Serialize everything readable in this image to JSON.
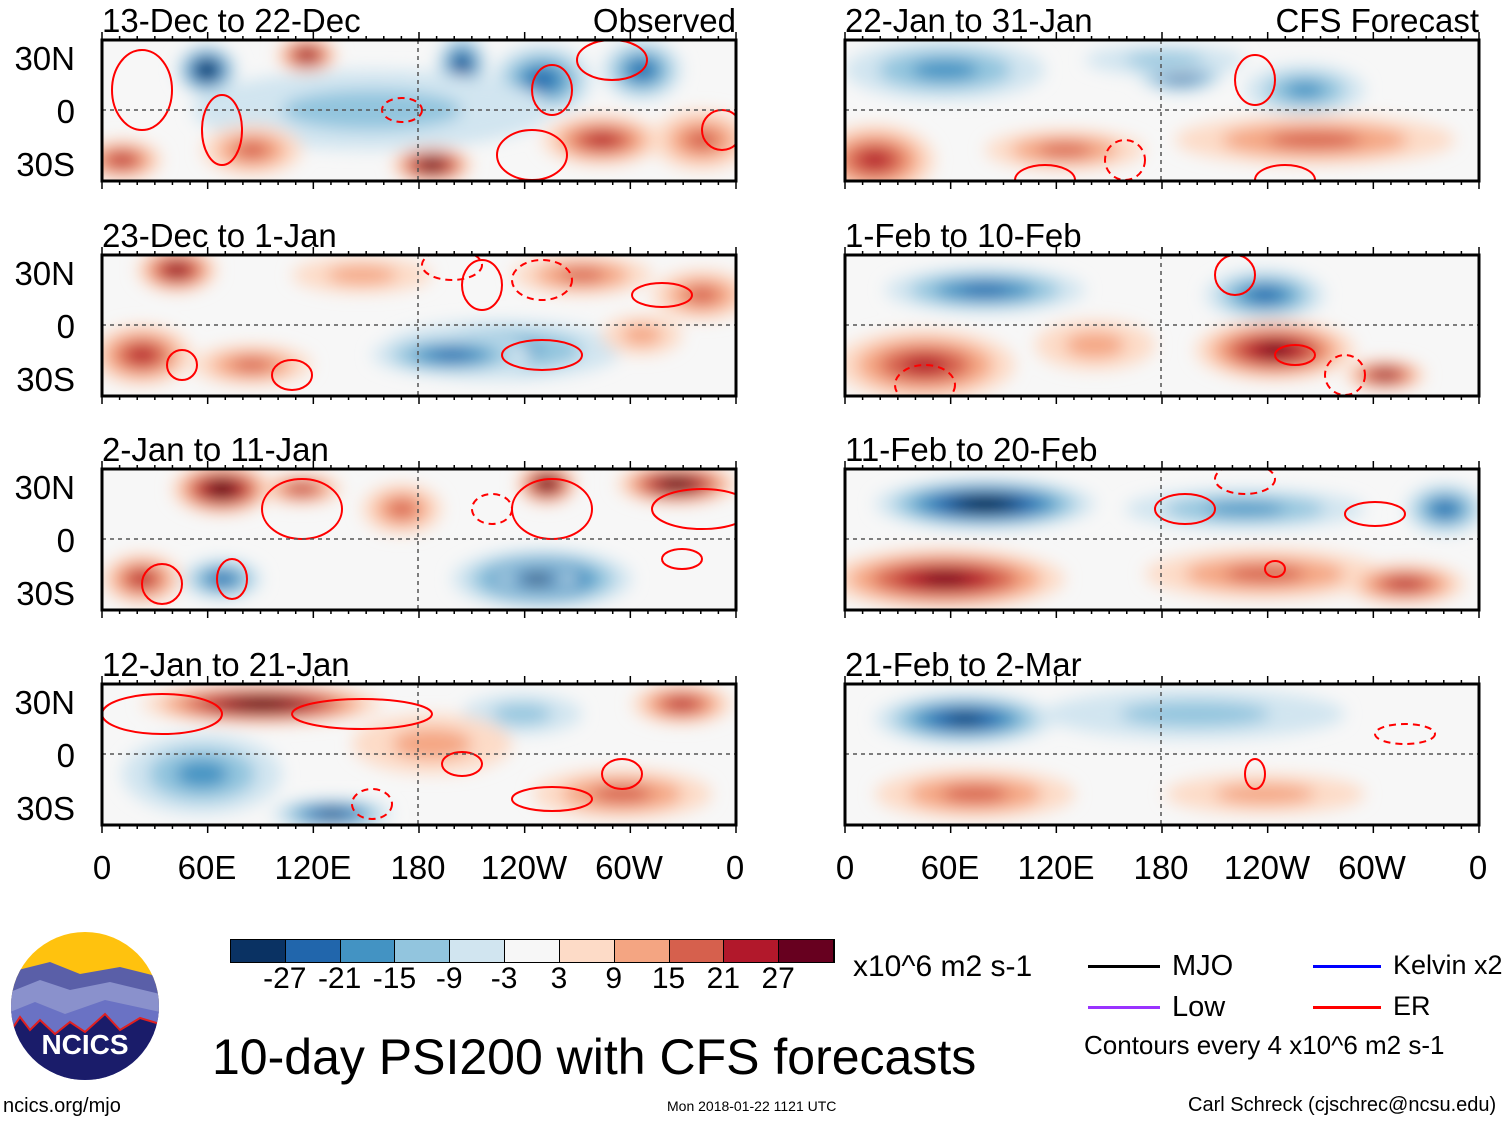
{
  "chart_data": {
    "type": "heatmap",
    "title": "10-day PSI200 with CFS forecasts",
    "variable": "PSI200 anomaly",
    "units": "x10^6 m2 s-1",
    "columns": [
      {
        "label": "Observed",
        "panels": [
          "13-Dec to 22-Dec",
          "23-Dec to 1-Jan",
          "2-Jan to 11-Jan",
          "12-Jan to 21-Jan"
        ]
      },
      {
        "label": "CFS Forecast",
        "panels": [
          "22-Jan to 31-Jan",
          "1-Feb to 10-Feb",
          "11-Feb to 20-Feb",
          "21-Feb to 2-Mar"
        ]
      }
    ],
    "lat_ticks": [
      "30N",
      "0",
      "30S"
    ],
    "lon_ticks": [
      "0",
      "60E",
      "120E",
      "180",
      "120W",
      "60W",
      "0"
    ],
    "colorbar": {
      "levels": [
        "-27",
        "-21",
        "-15",
        "-9",
        "-3",
        "3",
        "9",
        "15",
        "21",
        "27"
      ],
      "colors": [
        "#0a3263",
        "#2166ac",
        "#4393c3",
        "#92c5de",
        "#d1e5f0",
        "#f7f7f7",
        "#fddbc7",
        "#f4a582",
        "#d6604d",
        "#b2182b",
        "#67001f"
      ]
    },
    "legend": [
      {
        "label": "MJO",
        "color": "#000000"
      },
      {
        "label": "Kelvin x2",
        "color": "#0000ff"
      },
      {
        "label": "Low",
        "color": "#9933ff"
      },
      {
        "label": "ER",
        "color": "#ff0000"
      }
    ],
    "contour_note": "Contours every 4 x10^6 m2 s-1"
  },
  "footer": {
    "logo_text": "NCICS",
    "url": "ncics.org/mjo",
    "timestamp": "Mon 2018-01-22 1121 UTC",
    "author": "Carl Schreck (cjschrec@ncsu.edu)"
  }
}
